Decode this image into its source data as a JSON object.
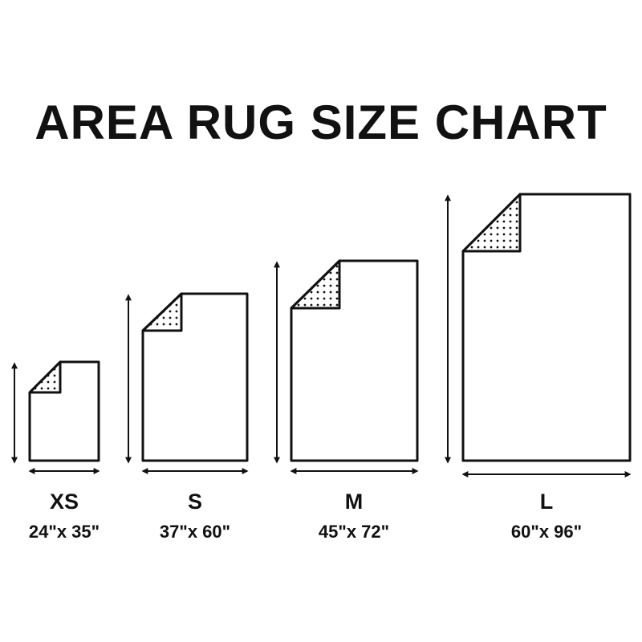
{
  "title": "AREA RUG SIZE CHART",
  "sizes": [
    {
      "label": "XS",
      "dimensions": "24\"x 35\""
    },
    {
      "label": "S",
      "dimensions": "37\"x 60\""
    },
    {
      "label": "M",
      "dimensions": "45\"x 72\""
    },
    {
      "label": "L",
      "dimensions": "60\"x 96\""
    }
  ],
  "colors": {
    "line": "#111111",
    "background": "#ffffff"
  }
}
